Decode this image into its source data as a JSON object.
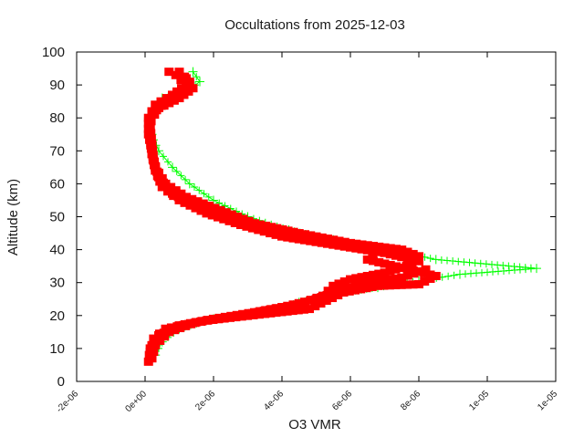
{
  "chart_data": {
    "type": "line",
    "title": "Occultations from 2025-12-03",
    "xlabel": "O3 VMR",
    "ylabel": "Altitude (km)",
    "xlim": [
      -2e-06,
      1.2e-05
    ],
    "ylim": [
      0,
      100
    ],
    "grid": false,
    "legend": "none",
    "x_ticks": [
      -2e-06,
      0,
      2e-06,
      4e-06,
      6e-06,
      8e-06,
      1e-05,
      1.2e-05
    ],
    "x_tick_labels": [
      "-2e-06",
      "0e+00",
      "2e-06",
      "4e-06",
      "6e-06",
      "8e-06",
      "1e-05",
      "1e-05"
    ],
    "y_ticks": [
      0,
      10,
      20,
      30,
      40,
      50,
      60,
      70,
      80,
      90,
      100
    ],
    "y_tick_labels": [
      "0",
      "10",
      "20",
      "30",
      "40",
      "50",
      "60",
      "70",
      "80",
      "90",
      "100"
    ],
    "series": [
      {
        "name": "profile-green",
        "color": "#00ff00",
        "marker": "plus",
        "points": [
          [
            3e-07,
            8
          ],
          [
            5e-07,
            12
          ],
          [
            1e-06,
            16
          ],
          [
            2e-06,
            19
          ],
          [
            3.5e-06,
            21
          ],
          [
            4.5e-06,
            24
          ],
          [
            5.5e-06,
            26.5
          ],
          [
            6.8e-06,
            28.5
          ],
          [
            8e-06,
            30.5
          ],
          [
            9.2e-06,
            32.5
          ],
          [
            1.144e-05,
            34.3
          ],
          [
            8.5e-06,
            37
          ],
          [
            7.2e-06,
            40
          ],
          [
            5.5e-06,
            43
          ],
          [
            4.2e-06,
            46
          ],
          [
            3e-06,
            50
          ],
          [
            2e-06,
            55
          ],
          [
            1.3e-06,
            60
          ],
          [
            8e-07,
            65
          ],
          [
            4e-07,
            70
          ],
          [
            2e-07,
            75
          ],
          [
            1e-07,
            80
          ],
          [
            2e-07,
            83
          ],
          [
            5e-07,
            86
          ],
          [
            1.2e-06,
            88
          ],
          [
            1.6e-06,
            91
          ],
          [
            1.4e-06,
            94
          ]
        ]
      },
      {
        "name": "profile-red-a",
        "color": "#ff0000",
        "marker": "square",
        "points": [
          [
            1e-07,
            6
          ],
          [
            1.5e-07,
            10
          ],
          [
            4e-07,
            14
          ],
          [
            1e-06,
            17
          ],
          [
            2e-06,
            19
          ],
          [
            3.2e-06,
            21
          ],
          [
            4.5e-06,
            23.5
          ],
          [
            5.2e-06,
            26
          ],
          [
            5.5e-06,
            29
          ],
          [
            6e-06,
            31
          ],
          [
            7e-06,
            33
          ],
          [
            7.8e-06,
            35.5
          ],
          [
            8e-06,
            38
          ],
          [
            7.5e-06,
            40
          ],
          [
            6e-06,
            42
          ],
          [
            4.5e-06,
            45
          ],
          [
            3.2e-06,
            48
          ],
          [
            2.2e-06,
            52
          ],
          [
            1.2e-06,
            56
          ],
          [
            6e-07,
            60
          ],
          [
            3e-07,
            65
          ],
          [
            2e-07,
            70
          ],
          [
            1e-07,
            75
          ],
          [
            1e-07,
            80
          ],
          [
            3e-07,
            84
          ],
          [
            8e-07,
            87
          ],
          [
            1.2e-06,
            90
          ],
          [
            9e-07,
            93
          ],
          [
            7e-07,
            94
          ]
        ]
      },
      {
        "name": "profile-red-b",
        "color": "#ff0000",
        "marker": "square",
        "points": [
          [
            2e-07,
            7
          ],
          [
            3e-07,
            11
          ],
          [
            7e-07,
            15
          ],
          [
            1.5e-06,
            18
          ],
          [
            2.8e-06,
            20
          ],
          [
            4e-06,
            22.5
          ],
          [
            5e-06,
            25
          ],
          [
            5.8e-06,
            28
          ],
          [
            6.5e-06,
            30
          ],
          [
            7.5e-06,
            31.5
          ],
          [
            8.2e-06,
            34
          ],
          [
            8e-06,
            36.5
          ],
          [
            7e-06,
            39
          ],
          [
            5.5e-06,
            41.5
          ],
          [
            4e-06,
            44
          ],
          [
            2.8e-06,
            47.5
          ],
          [
            1.8e-06,
            51
          ],
          [
            1e-06,
            55
          ],
          [
            5e-07,
            59
          ],
          [
            3e-07,
            64
          ],
          [
            2e-07,
            69
          ],
          [
            1.5e-07,
            74
          ],
          [
            1.5e-07,
            79
          ],
          [
            4e-07,
            83
          ],
          [
            1e-06,
            86
          ],
          [
            1.4e-06,
            89
          ],
          [
            1.2e-06,
            92
          ]
        ]
      },
      {
        "name": "profile-red-c",
        "color": "#ff0000",
        "marker": "square",
        "points": [
          [
            1.5e-07,
            9
          ],
          [
            2.5e-07,
            13
          ],
          [
            6e-07,
            16
          ],
          [
            1.8e-06,
            18.5
          ],
          [
            3.5e-06,
            20.5
          ],
          [
            4.8e-06,
            22
          ],
          [
            5.3e-06,
            24.5
          ],
          [
            5.8e-06,
            27
          ],
          [
            6.8e-06,
            29
          ],
          [
            8e-06,
            29.5
          ],
          [
            8.5e-06,
            32
          ],
          [
            7.5e-06,
            34.5
          ],
          [
            6.5e-06,
            37
          ],
          [
            6.8e-06,
            40.5
          ],
          [
            5e-06,
            43
          ],
          [
            3.8e-06,
            45.5
          ],
          [
            2.5e-06,
            49
          ],
          [
            1.5e-06,
            53
          ],
          [
            8e-07,
            57
          ],
          [
            4e-07,
            62
          ],
          [
            2.5e-07,
            67
          ],
          [
            2e-07,
            72
          ],
          [
            1.5e-07,
            77
          ],
          [
            2e-07,
            81
          ],
          [
            6e-07,
            85
          ],
          [
            1.1e-06,
            88
          ],
          [
            1.3e-06,
            91
          ],
          [
            1e-06,
            94
          ]
        ]
      }
    ]
  }
}
